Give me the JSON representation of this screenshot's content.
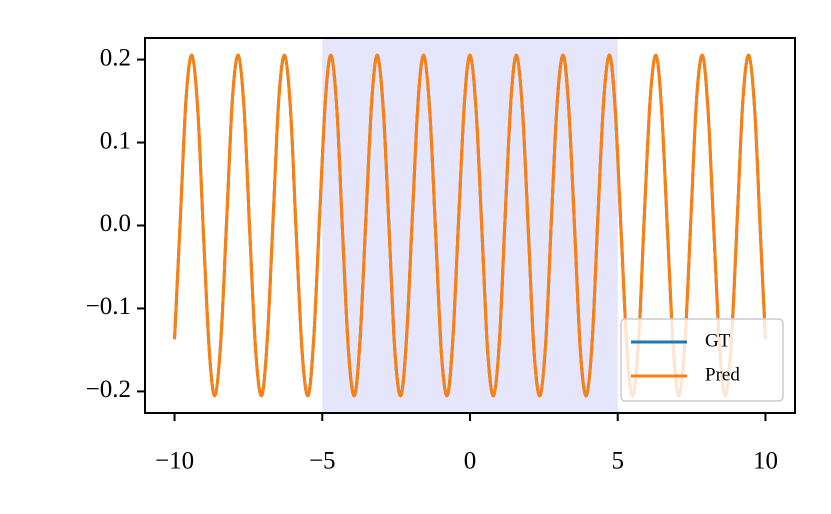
{
  "chart_data": {
    "type": "line",
    "x": [
      -10.0,
      -9.8,
      -9.61,
      -9.41,
      -9.21,
      -9.02,
      -8.82,
      -8.63,
      -8.43,
      -8.23,
      -8.04,
      -7.84,
      -7.64,
      -7.45,
      -7.25,
      -7.05,
      -6.86,
      -6.66,
      -6.47,
      -6.27,
      -6.07,
      -5.88,
      -5.68,
      -5.48,
      -5.29,
      -5.09,
      -4.89,
      -4.7,
      -4.5,
      -4.31,
      -4.11,
      -3.91,
      -3.72,
      -3.52,
      -3.32,
      -3.13,
      -2.93,
      -2.73,
      -2.54,
      -2.34,
      -2.15,
      -1.95,
      -1.75,
      -1.56,
      -1.36,
      -1.16,
      -0.97,
      -0.77,
      -0.58,
      -0.38,
      -0.18,
      0.01,
      0.21,
      0.41,
      0.6,
      0.8,
      1.0,
      1.19,
      1.39,
      1.58,
      1.78,
      1.98,
      2.17,
      2.37,
      2.57,
      2.76,
      2.96,
      3.16,
      3.35,
      3.55,
      3.74,
      3.94,
      4.14,
      4.33,
      4.53,
      4.73,
      4.92,
      5.12,
      5.32,
      5.51,
      5.71,
      5.9,
      6.1,
      6.3,
      6.49,
      6.69,
      6.89,
      7.08,
      7.28,
      7.48,
      7.67,
      7.87,
      8.06,
      8.26,
      8.46,
      8.65,
      8.85,
      9.05,
      9.24,
      9.44,
      9.64,
      9.83,
      10.0
    ],
    "series": [
      {
        "name": "GT",
        "color": "#1f77b4",
        "values": [
          -0.137,
          0.011,
          0.153,
          0.205,
          0.137,
          -0.011,
          -0.153,
          -0.205,
          -0.137,
          0.011,
          0.153,
          0.205,
          0.137,
          -0.011,
          -0.153,
          -0.205,
          -0.137,
          0.011,
          0.153,
          0.205,
          0.137,
          -0.011,
          -0.153,
          -0.205,
          -0.137,
          0.011,
          0.153,
          0.205,
          0.137,
          -0.011,
          -0.153,
          -0.205,
          -0.137,
          0.011,
          0.153,
          0.205,
          0.137,
          -0.011,
          -0.153,
          -0.205,
          -0.137,
          0.011,
          0.153,
          0.205,
          0.137,
          -0.011,
          -0.153,
          -0.205,
          -0.137,
          0.011,
          0.153,
          0.205,
          0.137,
          -0.011,
          -0.153,
          -0.205,
          -0.137,
          0.011,
          0.153,
          0.205,
          0.137,
          -0.011,
          -0.153,
          -0.205,
          -0.137,
          0.011,
          0.153,
          0.205,
          0.137,
          -0.011,
          -0.153,
          -0.205,
          -0.137,
          0.011,
          0.153,
          0.205,
          0.137,
          -0.011,
          -0.153,
          -0.205,
          -0.137,
          0.011,
          0.153,
          0.205,
          0.137,
          -0.011,
          -0.153,
          -0.205,
          -0.137,
          0.011,
          0.153,
          0.205,
          0.137,
          -0.011,
          -0.153,
          -0.205,
          -0.137,
          0.011,
          0.153,
          0.205,
          0.137,
          -0.011,
          -0.137
        ]
      },
      {
        "name": "Pred",
        "color": "#ff7f0e",
        "values": [
          -0.137,
          0.011,
          0.153,
          0.205,
          0.137,
          -0.011,
          -0.153,
          -0.205,
          -0.137,
          0.011,
          0.153,
          0.205,
          0.137,
          -0.011,
          -0.153,
          -0.205,
          -0.137,
          0.011,
          0.153,
          0.205,
          0.137,
          -0.011,
          -0.153,
          -0.205,
          -0.137,
          0.011,
          0.153,
          0.205,
          0.137,
          -0.011,
          -0.153,
          -0.205,
          -0.137,
          0.011,
          0.153,
          0.205,
          0.137,
          -0.011,
          -0.153,
          -0.205,
          -0.137,
          0.011,
          0.153,
          0.205,
          0.137,
          -0.011,
          -0.153,
          -0.205,
          -0.137,
          0.011,
          0.153,
          0.205,
          0.137,
          -0.011,
          -0.153,
          -0.205,
          -0.137,
          0.011,
          0.153,
          0.205,
          0.137,
          -0.011,
          -0.153,
          -0.205,
          -0.137,
          0.011,
          0.153,
          0.205,
          0.137,
          -0.011,
          -0.153,
          -0.205,
          -0.137,
          0.011,
          0.153,
          0.205,
          0.137,
          -0.011,
          -0.153,
          -0.205,
          -0.137,
          0.011,
          0.153,
          0.205,
          0.137,
          -0.011,
          -0.153,
          -0.205,
          -0.137,
          0.011,
          0.153,
          0.205,
          0.137,
          -0.011,
          -0.153,
          -0.205,
          -0.137,
          0.011,
          0.153,
          0.205,
          0.137,
          -0.011,
          -0.137
        ]
      }
    ],
    "shaded_region": [
      -5,
      5
    ],
    "shaded_color": "#e5e5fc",
    "xlim": [
      -11,
      11
    ],
    "ylim": [
      -0.226,
      0.226
    ],
    "xticks": [
      {
        "value": -10,
        "label": "−10"
      },
      {
        "value": -5,
        "label": "−5"
      },
      0,
      5,
      10
    ],
    "yticks": [
      {
        "value": -0.2,
        "label": "−0.2"
      },
      {
        "value": -0.1,
        "label": "−0.1"
      },
      {
        "value": 0,
        "label": "0.0"
      },
      0.1,
      0.2
    ],
    "legend": "lower right",
    "grid": false
  }
}
